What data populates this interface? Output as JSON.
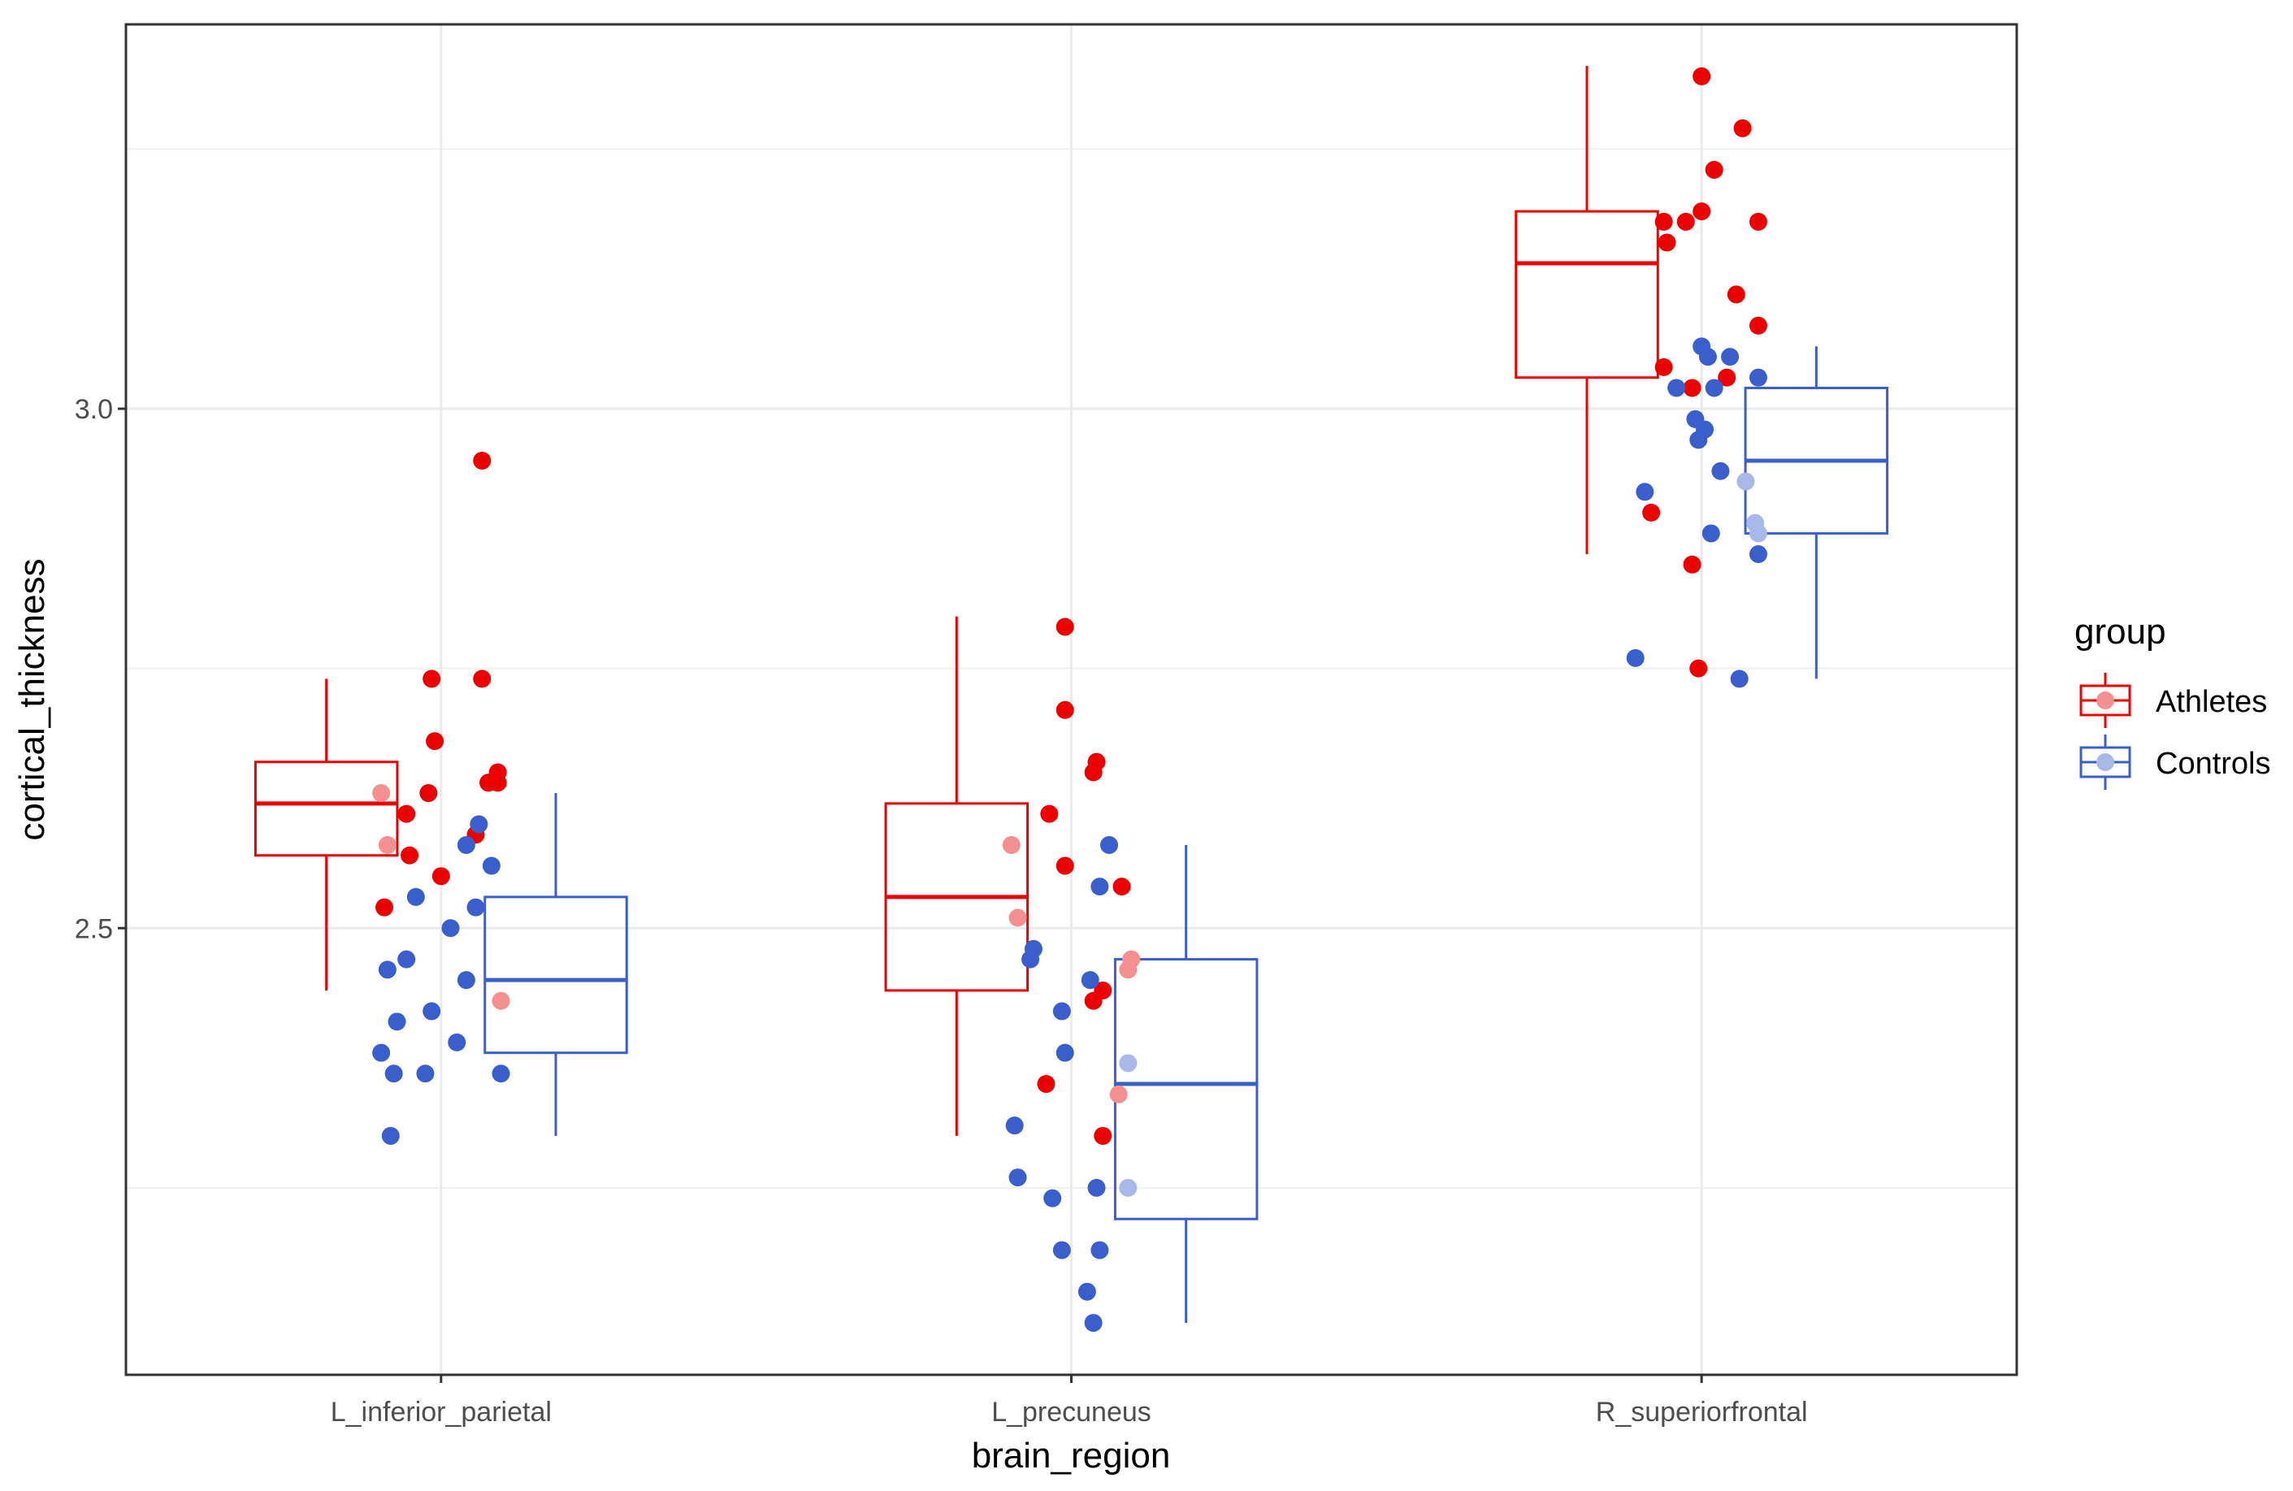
{
  "chart_data": {
    "type": "boxplot_with_jitter",
    "xlabel": "brain_region",
    "ylabel": "cortical_thickness",
    "categories": [
      "L_inferior_parietal",
      "L_precuneus",
      "R_superiorfrontal"
    ],
    "ylim": [
      2.07,
      3.37
    ],
    "yticks": [
      2.5,
      3.0
    ],
    "ytick_labels": [
      "2.5",
      "3.0"
    ],
    "grid": true,
    "legend": {
      "title": "group",
      "position": "right",
      "entries": [
        "Athletes",
        "Controls"
      ]
    },
    "colors": {
      "Athletes": "#ee0000",
      "Controls": "#3a5fcd",
      "Athletes_light": "#f59090",
      "Controls_light": "#a8b8e8",
      "grid": "#ebebeb",
      "border": "#333333"
    },
    "series": [
      {
        "name": "Athletes",
        "boxes": [
          {
            "category": "L_inferior_parietal",
            "whisker_low": 2.44,
            "q1": 2.57,
            "median": 2.62,
            "q3": 2.66,
            "whisker_high": 2.74
          },
          {
            "category": "L_precuneus",
            "whisker_low": 2.3,
            "q1": 2.44,
            "median": 2.53,
            "q3": 2.62,
            "whisker_high": 2.8
          },
          {
            "category": "R_superiorfrontal",
            "whisker_low": 2.86,
            "q1": 3.03,
            "median": 3.14,
            "q3": 3.19,
            "whisker_high": 3.33
          }
        ],
        "points": [
          {
            "category": "L_inferior_parietal",
            "jitter": -0.19,
            "value": 2.63
          },
          {
            "category": "L_inferior_parietal",
            "jitter": -0.17,
            "value": 2.58
          },
          {
            "category": "L_inferior_parietal",
            "jitter": -0.11,
            "value": 2.61
          },
          {
            "category": "L_inferior_parietal",
            "jitter": -0.1,
            "value": 2.57
          },
          {
            "category": "L_inferior_parietal",
            "jitter": -0.04,
            "value": 2.63
          },
          {
            "category": "L_inferior_parietal",
            "jitter": 0.19,
            "value": 2.43
          },
          {
            "category": "L_inferior_parietal",
            "jitter": -0.18,
            "value": 2.52
          },
          {
            "category": "L_inferior_parietal",
            "jitter": -0.03,
            "value": 2.74
          },
          {
            "category": "L_inferior_parietal",
            "jitter": -0.02,
            "value": 2.68
          },
          {
            "category": "L_inferior_parietal",
            "jitter": 0.0,
            "value": 2.55
          },
          {
            "category": "L_inferior_parietal",
            "jitter": 0.13,
            "value": 2.95
          },
          {
            "category": "L_inferior_parietal",
            "jitter": 0.13,
            "value": 2.74
          },
          {
            "category": "L_inferior_parietal",
            "jitter": 0.15,
            "value": 2.64
          },
          {
            "category": "L_inferior_parietal",
            "jitter": 0.18,
            "value": 2.65
          },
          {
            "category": "L_inferior_parietal",
            "jitter": 0.18,
            "value": 2.64
          },
          {
            "category": "L_inferior_parietal",
            "jitter": 0.11,
            "value": 2.59
          },
          {
            "category": "L_precuneus",
            "jitter": -0.19,
            "value": 2.58
          },
          {
            "category": "L_precuneus",
            "jitter": -0.17,
            "value": 2.51
          },
          {
            "category": "L_precuneus",
            "jitter": -0.07,
            "value": 2.61
          },
          {
            "category": "L_precuneus",
            "jitter": 0.07,
            "value": 2.43
          },
          {
            "category": "L_precuneus",
            "jitter": 0.1,
            "value": 2.44
          },
          {
            "category": "L_precuneus",
            "jitter": 0.15,
            "value": 2.34
          },
          {
            "category": "L_precuneus",
            "jitter": 0.1,
            "value": 2.3
          },
          {
            "category": "L_precuneus",
            "jitter": 0.18,
            "value": 2.46
          },
          {
            "category": "L_precuneus",
            "jitter": -0.08,
            "value": 2.35
          },
          {
            "category": "L_precuneus",
            "jitter": -0.02,
            "value": 2.56
          },
          {
            "category": "L_precuneus",
            "jitter": -0.02,
            "value": 2.71
          },
          {
            "category": "L_precuneus",
            "jitter": -0.02,
            "value": 2.79
          },
          {
            "category": "L_precuneus",
            "jitter": 0.07,
            "value": 2.65
          },
          {
            "category": "L_precuneus",
            "jitter": 0.08,
            "value": 2.66
          },
          {
            "category": "L_precuneus",
            "jitter": 0.16,
            "value": 2.54
          },
          {
            "category": "L_precuneus",
            "jitter": 0.19,
            "value": 2.47
          },
          {
            "category": "R_superiorfrontal",
            "jitter": -0.12,
            "value": 3.18
          },
          {
            "category": "R_superiorfrontal",
            "jitter": -0.11,
            "value": 3.16
          },
          {
            "category": "R_superiorfrontal",
            "jitter": -0.05,
            "value": 3.18
          },
          {
            "category": "R_superiorfrontal",
            "jitter": -0.12,
            "value": 3.04
          },
          {
            "category": "R_superiorfrontal",
            "jitter": -0.16,
            "value": 2.9
          },
          {
            "category": "R_superiorfrontal",
            "jitter": -0.03,
            "value": 3.02
          },
          {
            "category": "R_superiorfrontal",
            "jitter": -0.03,
            "value": 2.85
          },
          {
            "category": "R_superiorfrontal",
            "jitter": -0.01,
            "value": 2.75
          },
          {
            "category": "R_superiorfrontal",
            "jitter": 0.0,
            "value": 3.32
          },
          {
            "category": "R_superiorfrontal",
            "jitter": 0.0,
            "value": 3.19
          },
          {
            "category": "R_superiorfrontal",
            "jitter": 0.04,
            "value": 3.23
          },
          {
            "category": "R_superiorfrontal",
            "jitter": 0.08,
            "value": 3.03
          },
          {
            "category": "R_superiorfrontal",
            "jitter": 0.11,
            "value": 3.11
          },
          {
            "category": "R_superiorfrontal",
            "jitter": 0.13,
            "value": 3.27
          },
          {
            "category": "R_superiorfrontal",
            "jitter": 0.18,
            "value": 3.18
          },
          {
            "category": "R_superiorfrontal",
            "jitter": 0.18,
            "value": 3.08
          }
        ]
      },
      {
        "name": "Controls",
        "boxes": [
          {
            "category": "L_inferior_parietal",
            "whisker_low": 2.3,
            "q1": 2.38,
            "median": 2.45,
            "q3": 2.53,
            "whisker_high": 2.63
          },
          {
            "category": "L_precuneus",
            "whisker_low": 2.12,
            "q1": 2.22,
            "median": 2.35,
            "q3": 2.47,
            "whisker_high": 2.58
          },
          {
            "category": "R_superiorfrontal",
            "whisker_low": 2.74,
            "q1": 2.88,
            "median": 2.95,
            "q3": 3.02,
            "whisker_high": 3.06
          }
        ]
      }
    ]
  }
}
